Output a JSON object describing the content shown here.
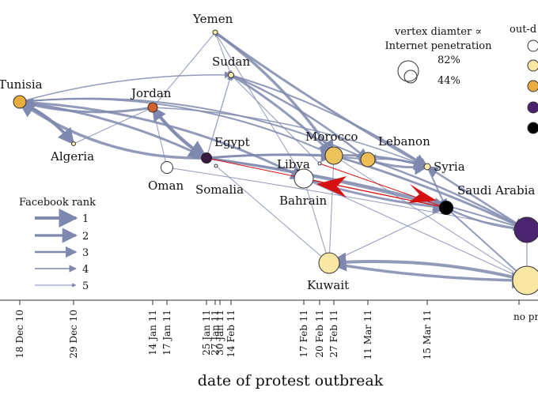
{
  "diagram": {
    "axis_title": "date of protest outbreak",
    "tick_labels": [
      "18 Dec 10",
      "29 Dec 10",
      "14 Jan 11",
      "17 Jan 11",
      "25 Jan 11",
      "27 Jan 11",
      "30 Jan 11",
      "14 Feb 11",
      "17 Feb 11",
      "20 Feb 11",
      "27 Feb 11",
      "11 Mar 11",
      "15 Mar 11",
      "no protest"
    ],
    "nodes": [
      {
        "name": "Tunisia",
        "color": "#E8AD3E"
      },
      {
        "name": "Algeria",
        "color": "#FBE9A8"
      },
      {
        "name": "Jordan",
        "color": "#D2622A"
      },
      {
        "name": "Oman",
        "color": "#FFFFFF"
      },
      {
        "name": "Yemen",
        "color": "#FBE9A8"
      },
      {
        "name": "Sudan",
        "color": "#FBE9A8"
      },
      {
        "name": "Egypt",
        "color": "#3B1840"
      },
      {
        "name": "Somalia",
        "color": "#FFFFFF"
      },
      {
        "name": "Libya",
        "color": "#FFFFFF"
      },
      {
        "name": "Bahrain",
        "color": "#FFFFFF"
      },
      {
        "name": "Morocco",
        "color": "#EEC25A"
      },
      {
        "name": "Kuwait",
        "color": "#FBE7A4"
      },
      {
        "name": "Lebanon",
        "color": "#EEBE55"
      },
      {
        "name": "Syria",
        "color": "#FBE9A8"
      },
      {
        "name": "Saudi Arabia",
        "color": "#000000"
      },
      {
        "name": "",
        "color": "#4B2470"
      },
      {
        "name": "",
        "color": "#FBE7A4"
      }
    ],
    "legend_facebook": {
      "title": "Facebook rank",
      "ranks": [
        "1",
        "2",
        "3",
        "4",
        "5"
      ]
    },
    "legend_size": {
      "title_line1": "vertex diamter ∝",
      "title_line2": "Internet penetration",
      "values": [
        "82%",
        "44%"
      ]
    },
    "legend_color": {
      "title": "out-d",
      "swatches": [
        "#FFFFFF",
        "#FBE7A4",
        "#E8AD3E",
        "#4B2470",
        "#000000"
      ]
    },
    "edge_color": "#7F88AE",
    "highlight_color": "#D41010"
  }
}
